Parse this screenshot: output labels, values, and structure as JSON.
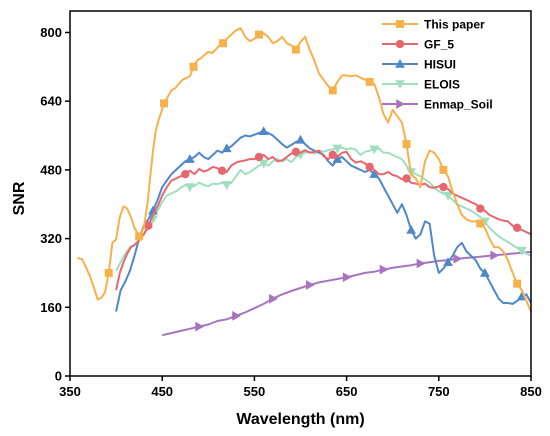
{
  "chart_data": {
    "type": "line",
    "xlabel": "Wavelength (nm)",
    "ylabel": "SNR",
    "xlim": [
      350,
      850
    ],
    "ylim": [
      0,
      850
    ],
    "xticks": [
      350,
      450,
      550,
      650,
      750,
      850
    ],
    "yticks": [
      0,
      160,
      320,
      480,
      640,
      800
    ],
    "grid": false,
    "legend_position": "top-right",
    "series": [
      {
        "name": "This paper",
        "color": "#f8b04a",
        "marker": "square",
        "x": [
          358,
          363,
          368,
          372,
          376,
          380,
          384,
          388,
          392,
          396,
          400,
          404,
          408,
          412,
          416,
          420,
          425,
          430,
          434,
          437,
          440,
          443,
          446,
          449,
          452,
          456,
          460,
          464,
          468,
          472,
          476,
          480,
          484,
          488,
          492,
          496,
          500,
          504,
          508,
          512,
          516,
          520,
          525,
          530,
          535,
          540,
          545,
          550,
          555,
          560,
          565,
          570,
          575,
          580,
          585,
          590,
          595,
          600,
          605,
          610,
          615,
          620,
          625,
          630,
          635,
          640,
          645,
          650,
          655,
          660,
          665,
          670,
          675,
          680,
          685,
          690,
          695,
          700,
          705,
          710,
          715,
          720,
          725,
          730,
          735,
          740,
          745,
          750,
          755,
          760,
          765,
          770,
          775,
          780,
          785,
          790,
          795,
          800,
          805,
          810,
          815,
          820,
          825,
          830,
          835,
          840,
          845,
          850
        ],
        "y": [
          275,
          272,
          250,
          230,
          205,
          178,
          182,
          195,
          240,
          310,
          318,
          370,
          395,
          390,
          370,
          345,
          325,
          345,
          400,
          463,
          525,
          570,
          595,
          615,
          635,
          650,
          665,
          670,
          680,
          690,
          694,
          698,
          720,
          735,
          740,
          748,
          755,
          752,
          760,
          770,
          775,
          785,
          795,
          805,
          810,
          790,
          780,
          785,
          795,
          798,
          790,
          775,
          780,
          790,
          775,
          770,
          760,
          778,
          790,
          760,
          735,
          705,
          690,
          675,
          665,
          685,
          700,
          700,
          698,
          700,
          695,
          690,
          685,
          680,
          650,
          610,
          590,
          620,
          605,
          590,
          540,
          470,
          460,
          440,
          500,
          525,
          520,
          505,
          480,
          465,
          430,
          400,
          375,
          365,
          360,
          360,
          355,
          345,
          320,
          300,
          300,
          290,
          270,
          240,
          215,
          200,
          175,
          150
        ]
      },
      {
        "name": "GF_5",
        "color": "#e8666d",
        "marker": "circle",
        "x": [
          400,
          404,
          408,
          412,
          416,
          420,
          425,
          430,
          435,
          440,
          445,
          450,
          455,
          460,
          465,
          470,
          475,
          480,
          485,
          490,
          495,
          500,
          505,
          510,
          515,
          520,
          525,
          530,
          535,
          540,
          545,
          550,
          555,
          560,
          565,
          570,
          575,
          580,
          585,
          590,
          595,
          600,
          605,
          610,
          615,
          620,
          625,
          630,
          635,
          640,
          645,
          650,
          655,
          660,
          665,
          670,
          675,
          680,
          685,
          690,
          695,
          700,
          705,
          710,
          715,
          720,
          725,
          730,
          735,
          740,
          745,
          750,
          755,
          760,
          765,
          770,
          775,
          780,
          785,
          790,
          795,
          800,
          805,
          810,
          815,
          820,
          825,
          830,
          835,
          840,
          845,
          850
        ],
        "y": [
          200,
          240,
          265,
          285,
          300,
          305,
          315,
          330,
          350,
          375,
          395,
          420,
          440,
          455,
          460,
          465,
          470,
          478,
          470,
          482,
          476,
          480,
          487,
          484,
          478,
          475,
          490,
          497,
          500,
          502,
          505,
          505,
          510,
          515,
          505,
          510,
          500,
          502,
          510,
          518,
          522,
          520,
          526,
          520,
          522,
          525,
          512,
          505,
          515,
          510,
          520,
          522,
          505,
          497,
          500,
          495,
          487,
          480,
          470,
          470,
          475,
          468,
          465,
          458,
          460,
          450,
          448,
          445,
          448,
          440,
          438,
          442,
          440,
          436,
          425,
          420,
          415,
          410,
          405,
          400,
          390,
          385,
          375,
          370,
          365,
          362,
          360,
          350,
          345,
          340,
          335,
          330
        ]
      },
      {
        "name": "HISUI",
        "color": "#4f87c8",
        "marker": "triangle-up",
        "x": [
          400,
          405,
          410,
          415,
          420,
          425,
          430,
          435,
          440,
          445,
          450,
          455,
          460,
          465,
          470,
          475,
          480,
          485,
          490,
          495,
          500,
          505,
          510,
          515,
          520,
          525,
          530,
          535,
          540,
          545,
          550,
          555,
          560,
          565,
          570,
          575,
          580,
          585,
          590,
          595,
          600,
          605,
          610,
          615,
          620,
          625,
          630,
          635,
          640,
          645,
          650,
          655,
          660,
          665,
          670,
          675,
          680,
          685,
          690,
          695,
          700,
          705,
          710,
          715,
          720,
          725,
          730,
          735,
          740,
          745,
          750,
          755,
          760,
          765,
          770,
          775,
          780,
          785,
          790,
          795,
          800,
          805,
          810,
          815,
          820,
          825,
          830,
          835,
          840,
          845,
          850
        ],
        "y": [
          150,
          200,
          220,
          245,
          280,
          320,
          350,
          365,
          385,
          410,
          440,
          455,
          470,
          480,
          490,
          500,
          505,
          510,
          520,
          510,
          505,
          515,
          525,
          520,
          530,
          535,
          545,
          555,
          560,
          558,
          562,
          566,
          570,
          566,
          560,
          550,
          540,
          532,
          538,
          545,
          550,
          540,
          530,
          525,
          520,
          515,
          500,
          490,
          505,
          510,
          500,
          490,
          485,
          480,
          475,
          480,
          470,
          460,
          440,
          420,
          400,
          380,
          400,
          375,
          340,
          320,
          330,
          360,
          355,
          280,
          240,
          250,
          265,
          280,
          300,
          310,
          290,
          280,
          270,
          250,
          240,
          220,
          200,
          180,
          170,
          170,
          168,
          175,
          185,
          190,
          170
        ]
      },
      {
        "name": "ELOIS",
        "color": "#9fdfbf",
        "marker": "triangle-down",
        "x": [
          400,
          405,
          410,
          415,
          420,
          425,
          430,
          435,
          440,
          445,
          450,
          455,
          460,
          465,
          470,
          475,
          480,
          485,
          490,
          495,
          500,
          505,
          510,
          515,
          520,
          525,
          530,
          535,
          540,
          545,
          550,
          555,
          560,
          565,
          570,
          575,
          580,
          585,
          590,
          595,
          600,
          605,
          610,
          615,
          620,
          625,
          630,
          635,
          640,
          645,
          650,
          655,
          660,
          665,
          670,
          675,
          680,
          685,
          690,
          695,
          700,
          705,
          710,
          715,
          720,
          725,
          730,
          735,
          740,
          745,
          750,
          755,
          760,
          765,
          770,
          775,
          780,
          785,
          790,
          795,
          800,
          805,
          810,
          815,
          820,
          825,
          830,
          835,
          840,
          845,
          850
        ],
        "y": [
          245,
          265,
          285,
          300,
          305,
          318,
          330,
          345,
          365,
          385,
          405,
          420,
          425,
          430,
          438,
          445,
          440,
          443,
          450,
          445,
          442,
          448,
          447,
          450,
          445,
          450,
          465,
          480,
          470,
          475,
          482,
          490,
          495,
          490,
          500,
          505,
          500,
          505,
          498,
          510,
          515,
          520,
          522,
          518,
          525,
          522,
          526,
          528,
          530,
          532,
          528,
          530,
          527,
          515,
          522,
          525,
          528,
          530,
          520,
          520,
          515,
          510,
          505,
          490,
          475,
          470,
          465,
          458,
          450,
          440,
          430,
          425,
          420,
          410,
          400,
          395,
          390,
          385,
          378,
          370,
          360,
          345,
          335,
          325,
          318,
          312,
          305,
          298,
          292,
          285,
          280
        ]
      },
      {
        "name": "Enmap_Soil",
        "color": "#a874c0",
        "marker": "triangle-right",
        "x": [
          450,
          460,
          470,
          480,
          490,
          500,
          510,
          520,
          530,
          540,
          550,
          560,
          570,
          580,
          590,
          600,
          610,
          620,
          630,
          640,
          650,
          660,
          670,
          680,
          690,
          700,
          710,
          720,
          730,
          740,
          750,
          760,
          770,
          780,
          790,
          800,
          810,
          820,
          830,
          840,
          850
        ],
        "y": [
          95,
          100,
          105,
          110,
          115,
          120,
          128,
          132,
          140,
          148,
          158,
          168,
          180,
          190,
          198,
          205,
          212,
          218,
          222,
          226,
          230,
          235,
          240,
          243,
          248,
          252,
          255,
          258,
          262,
          265,
          268,
          270,
          273,
          275,
          277,
          279,
          281,
          283,
          285,
          287,
          289
        ]
      }
    ]
  }
}
